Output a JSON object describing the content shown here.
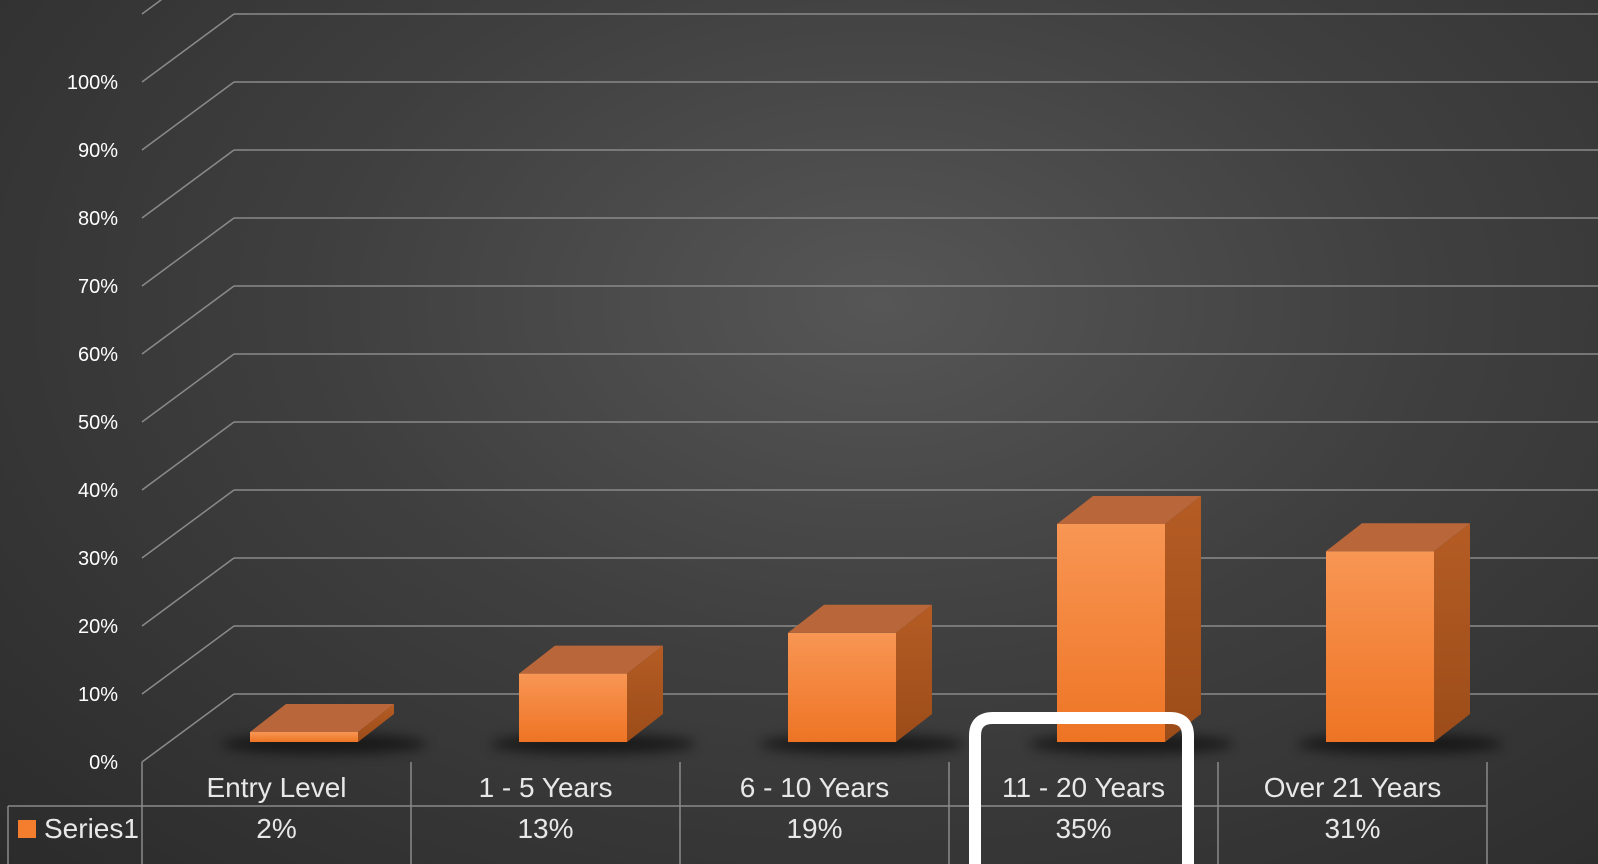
{
  "chart_data": {
    "type": "bar",
    "categories": [
      "Entry Level",
      "1 - 5 Years",
      "6 - 10 Years",
      "11 - 20 Years",
      "Over 21 Years"
    ],
    "series": [
      {
        "name": "Series1",
        "values": [
          2,
          13,
          19,
          35,
          31
        ],
        "labels": [
          "2%",
          "13%",
          "19%",
          "35%",
          "31%"
        ]
      }
    ],
    "yticks": [
      "0%",
      "10%",
      "20%",
      "30%",
      "40%",
      "50%",
      "60%",
      "70%",
      "80%",
      "90%",
      "100%"
    ],
    "ylim": [
      0,
      100
    ],
    "grid": true,
    "legend": "data-table-left",
    "highlight_category": "11 - 20 Years",
    "colors": {
      "bar_front": "#f47e2e",
      "bar_side": "#a9521c",
      "bar_top": "#b9673a",
      "gridline": "#8a8a8a",
      "highlight_box": "#ffffff"
    }
  }
}
